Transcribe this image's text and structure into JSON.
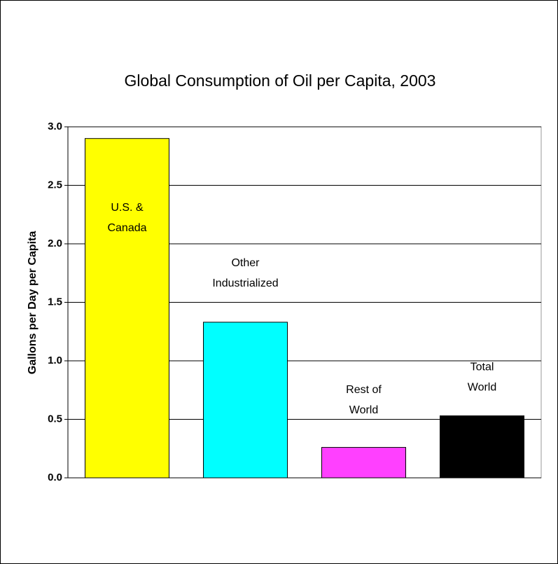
{
  "chart_data": {
    "type": "bar",
    "title": "Global Consumption of Oil per Capita, 2003",
    "y_label": "Gallons per Day per Capita",
    "categories": [
      [
        "U.S. &",
        "Canada"
      ],
      [
        "Other",
        "Industrialized"
      ],
      [
        "Rest of",
        "World"
      ],
      [
        "Total",
        "World"
      ]
    ],
    "values": [
      2.9,
      1.33,
      0.26,
      0.53
    ],
    "colors": [
      "#ffff00",
      "#00ffff",
      "#ff40ff",
      "#000000"
    ],
    "ylim": [
      0,
      3
    ],
    "yticks": [
      {
        "value": 0,
        "label": "0.0"
      },
      {
        "value": 0.5,
        "label": "0.5"
      },
      {
        "value": 1,
        "label": "1.0"
      },
      {
        "value": 1.5,
        "label": "1.5"
      },
      {
        "value": 2,
        "label": "2.0"
      },
      {
        "value": 2.5,
        "label": "2.5"
      },
      {
        "value": 3,
        "label": "3.0"
      }
    ],
    "grid": true
  }
}
